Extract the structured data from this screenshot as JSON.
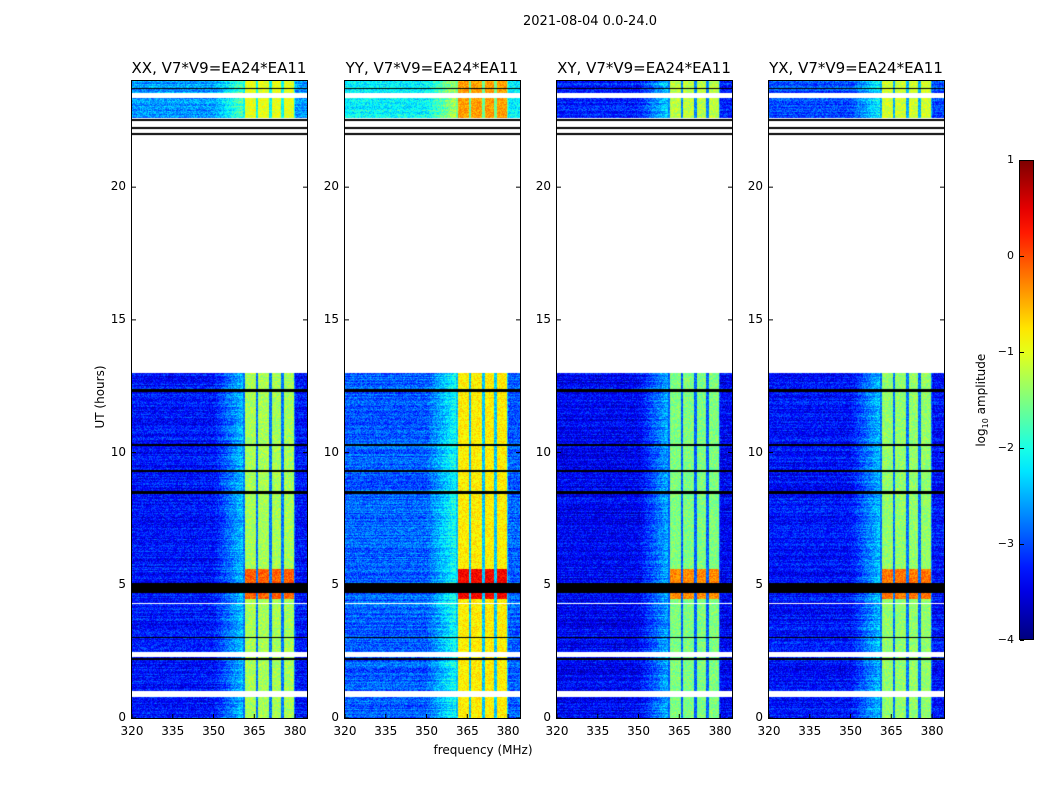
{
  "chart_data": {
    "type": "heatmap",
    "title": "2021-08-04 0.0-24.0",
    "xlabel": "frequency (MHz)",
    "ylabel": "UT (hours)",
    "xlim": [
      320,
      384.4
    ],
    "ylim": [
      0,
      24
    ],
    "xticks": [
      320,
      335,
      350,
      365,
      380
    ],
    "yticks": [
      0,
      5,
      10,
      15,
      20
    ],
    "colorbar": {
      "label_main": "log",
      "label_sub": "10",
      "label_rest": " amplitude",
      "range": [
        -4,
        1
      ],
      "ticks": [
        1,
        0,
        -1,
        -2,
        -3,
        -4
      ],
      "tick_labels": [
        "1",
        "0",
        "−1",
        "−2",
        "−3",
        "−4"
      ],
      "colormap": "jet"
    },
    "panels": [
      {
        "title": "XX, V7*V9=EA24*EA11",
        "base": -3.3,
        "high": -1.3,
        "top_base": -2.6,
        "top_high": -1.0
      },
      {
        "title": "YY, V7*V9=EA24*EA11",
        "base": -2.9,
        "high": -0.8,
        "top_base": -2.1,
        "top_high": -0.4
      },
      {
        "title": "XY, V7*V9=EA24*EA11",
        "base": -3.4,
        "high": -1.5,
        "top_base": -3.2,
        "top_high": -1.2
      },
      {
        "title": "YX, V7*V9=EA24*EA11",
        "base": -3.3,
        "high": -1.4,
        "top_base": -3.0,
        "top_high": -1.1
      }
    ],
    "data_segments_hours": [
      [
        0,
        0.8
      ],
      [
        1.0,
        2.3
      ],
      [
        2.5,
        4.3
      ],
      [
        4.35,
        13.0
      ],
      [
        22.6,
        23.35
      ],
      [
        23.55,
        24
      ]
    ],
    "flagged_black_hours": [
      [
        4.7,
        5.1
      ],
      [
        8.45,
        8.55
      ],
      [
        9.25,
        9.35
      ],
      [
        10.25,
        10.32
      ],
      [
        12.3,
        12.4
      ],
      [
        3.0,
        3.06
      ],
      [
        2.2,
        2.26
      ],
      [
        21.95,
        22.05
      ],
      [
        22.2,
        22.28
      ],
      [
        22.5,
        22.58
      ],
      [
        23.7,
        23.75
      ]
    ],
    "bright_band_hours": [
      [
        5.1,
        5.6
      ],
      [
        4.5,
        4.7
      ]
    ],
    "high_band_mhz": [
      361,
      380
    ],
    "subband_edges_mhz": [
      361,
      366,
      371,
      375.5,
      380
    ],
    "transition_mhz": [
      350,
      361
    ]
  }
}
